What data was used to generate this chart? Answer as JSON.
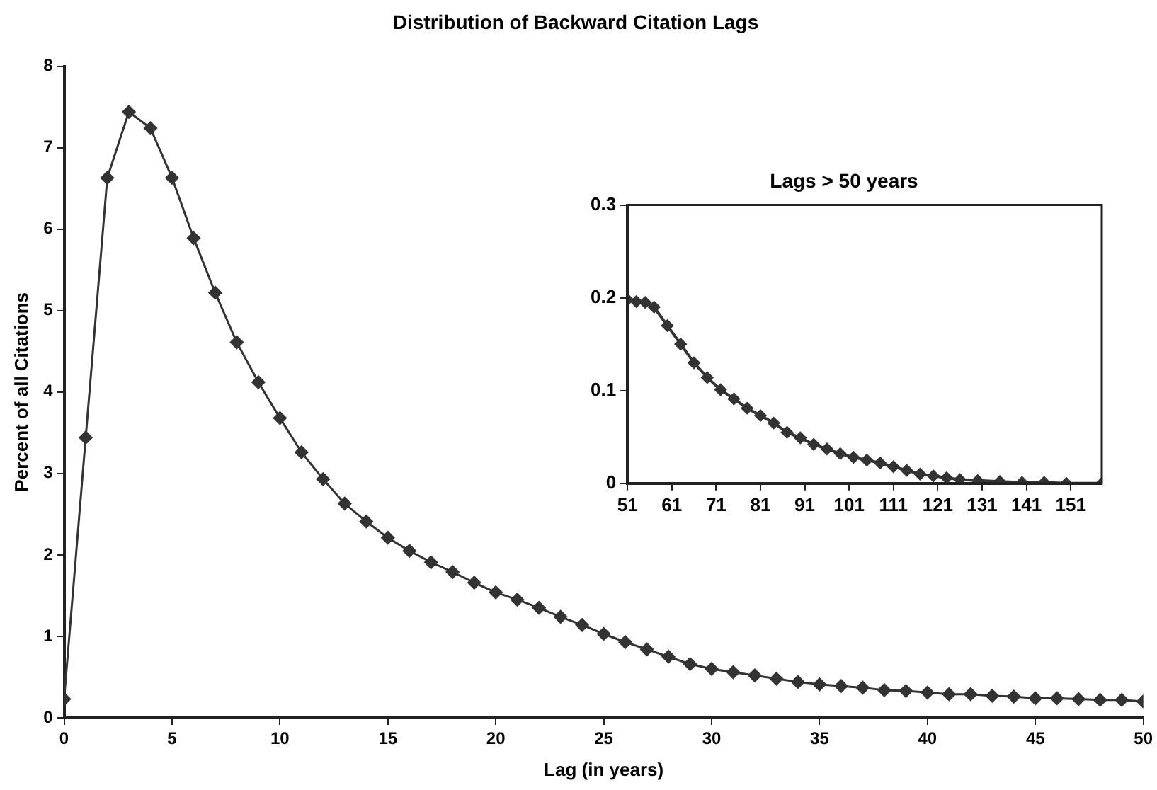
{
  "chart_data": [
    {
      "type": "line",
      "title": "Distribution of Backward Citation Lags",
      "xlabel": "Lag (in years)",
      "ylabel": "Percent of all Citations",
      "x": [
        0,
        1,
        2,
        3,
        4,
        5,
        6,
        7,
        8,
        9,
        10,
        11,
        12,
        13,
        14,
        15,
        16,
        17,
        18,
        19,
        20,
        21,
        22,
        23,
        24,
        25,
        26,
        27,
        28,
        29,
        30,
        31,
        32,
        33,
        34,
        35,
        36,
        37,
        38,
        39,
        40,
        41,
        42,
        43,
        44,
        45,
        46,
        47,
        48,
        49,
        50
      ],
      "series": [
        {
          "color": "#333333",
          "values": [
            0.23,
            3.44,
            6.63,
            7.44,
            7.24,
            6.63,
            5.89,
            5.22,
            4.61,
            4.12,
            3.68,
            3.26,
            2.93,
            2.63,
            2.41,
            2.21,
            2.05,
            1.91,
            1.79,
            1.66,
            1.54,
            1.45,
            1.35,
            1.24,
            1.14,
            1.03,
            0.93,
            0.84,
            0.75,
            0.66,
            0.6,
            0.56,
            0.52,
            0.48,
            0.44,
            0.41,
            0.39,
            0.37,
            0.34,
            0.33,
            0.31,
            0.29,
            0.29,
            0.27,
            0.26,
            0.24,
            0.24,
            0.23,
            0.22,
            0.22,
            0.2
          ]
        }
      ],
      "xlim": [
        0,
        50
      ],
      "ylim": [
        0,
        8
      ],
      "xticks": [
        0,
        5,
        10,
        15,
        20,
        25,
        30,
        35,
        40,
        45,
        50
      ],
      "yticks": [
        0,
        1,
        2,
        3,
        4,
        5,
        6,
        7,
        8
      ],
      "marker": "diamond",
      "line_style": "solid"
    },
    {
      "type": "line",
      "title": "Lags > 50 years",
      "x": [
        51,
        53,
        55,
        57,
        60,
        63,
        66,
        69,
        72,
        75,
        78,
        81,
        84,
        87,
        90,
        93,
        96,
        99,
        102,
        105,
        108,
        111,
        114,
        117,
        120,
        123,
        126,
        130,
        135,
        140,
        145,
        150,
        158
      ],
      "series": [
        {
          "color": "#333333",
          "values": [
            0.198,
            0.196,
            0.195,
            0.19,
            0.17,
            0.15,
            0.13,
            0.114,
            0.101,
            0.091,
            0.081,
            0.073,
            0.065,
            0.055,
            0.049,
            0.042,
            0.037,
            0.032,
            0.028,
            0.025,
            0.022,
            0.018,
            0.014,
            0.01,
            0.008,
            0.006,
            0.004,
            0.003,
            0.002,
            0.001,
            0.001,
            0,
            0
          ]
        }
      ],
      "xlim": [
        51,
        158
      ],
      "ylim": [
        0,
        0.3
      ],
      "xticks": [
        51,
        61,
        71,
        81,
        91,
        101,
        111,
        121,
        131,
        141,
        151
      ],
      "yticks": [
        0,
        0.1,
        0.2,
        0.3
      ],
      "marker": "diamond",
      "line_style": "solid"
    }
  ]
}
